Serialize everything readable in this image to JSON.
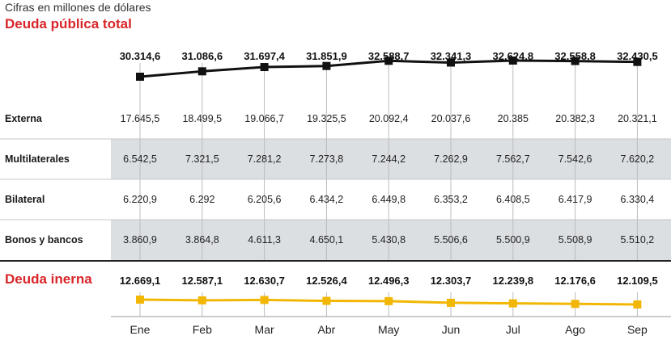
{
  "header": {
    "subtitle": "Cifras en millones de dólares",
    "title_total": "Deuda pública total",
    "title_interna": "Deuda inerna"
  },
  "colors": {
    "accent_red": "#d8262a",
    "line_total": "#111111",
    "line_interna": "#f2b705",
    "band_grey": "#dcdfe2"
  },
  "chart_data": {
    "type": "line",
    "categories": [
      "Ene",
      "Feb",
      "Mar",
      "Abr",
      "May",
      "Jun",
      "Jul",
      "Ago",
      "Sep"
    ],
    "total": {
      "name": "Deuda pública total",
      "labels": [
        "30.314,6",
        "31.086,6",
        "31.697,4",
        "31.851,9",
        "32.588,7",
        "32.341,3",
        "32.624,8",
        "32.558,8",
        "32.430,5"
      ],
      "values": [
        30314.6,
        31086.6,
        31697.4,
        31851.9,
        32588.7,
        32341.3,
        32624.8,
        32558.8,
        32430.5
      ]
    },
    "table": {
      "rows": [
        {
          "label": "Externa",
          "values": [
            "17.645,5",
            "18.499,5",
            "19.066,7",
            "19.325,5",
            "20.092,4",
            "20.037,6",
            "20.385",
            "20.382,3",
            "20.321,1"
          ]
        },
        {
          "label": "Multilaterales",
          "values": [
            "6.542,5",
            "7.321,5",
            "7.281,2",
            "7.273,8",
            "7.244,2",
            "7.262,9",
            "7.562,7",
            "7.542,6",
            "7.620,2"
          ]
        },
        {
          "label": "Bilateral",
          "values": [
            "6.220,9",
            "6.292",
            "6.205,6",
            "6.434,2",
            "6.449,8",
            "6.353,2",
            "6.408,5",
            "6.417,9",
            "6.330,4"
          ]
        },
        {
          "label": "Bonos y bancos",
          "values": [
            "3.860,9",
            "3.864,8",
            "4.611,3",
            "4.650,1",
            "5.430,8",
            "5.506,6",
            "5.500,9",
            "5.508,9",
            "5.510,2"
          ]
        }
      ]
    },
    "interna": {
      "name": "Deuda inerna",
      "labels": [
        "12.669,1",
        "12.587,1",
        "12.630,7",
        "12.526,4",
        "12.496,3",
        "12.303,7",
        "12.239,8",
        "12.176,6",
        "12.109,5"
      ],
      "values": [
        12669.1,
        12587.1,
        12630.7,
        12526.4,
        12496.3,
        12303.7,
        12239.8,
        12176.6,
        12109.5
      ]
    }
  }
}
